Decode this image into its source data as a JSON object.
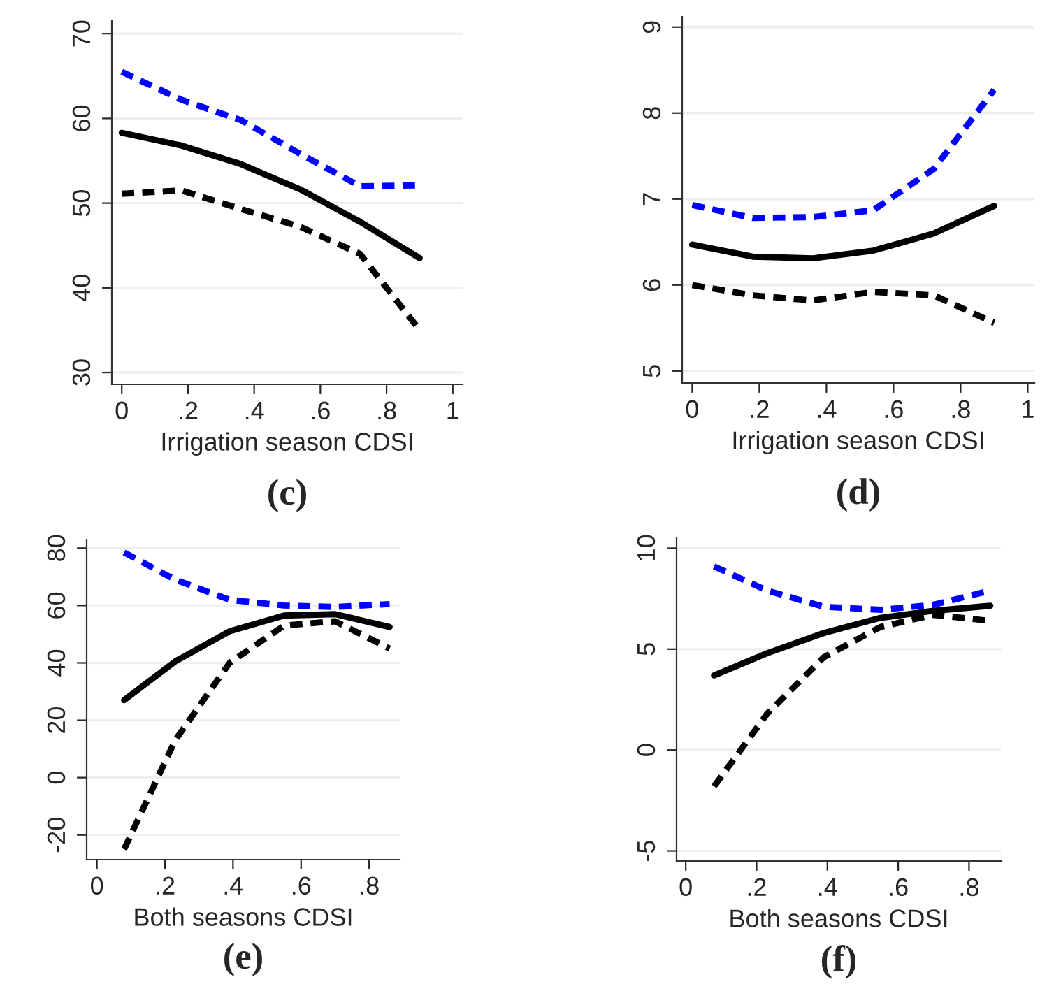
{
  "chart_data": [
    {
      "type": "line",
      "xlabel": "Irrigation season CDSI",
      "annotations": [
        "(c)"
      ],
      "x": [
        0,
        0.18,
        0.36,
        0.54,
        0.72,
        0.9
      ],
      "xlim": [
        -0.03,
        1.03
      ],
      "xticks": [
        0,
        {
          "value": 0.2,
          "label": ".2"
        },
        {
          "value": 0.4,
          "label": ".4"
        },
        {
          "value": 0.6,
          "label": ".6"
        },
        {
          "value": 0.8,
          "label": ".8"
        },
        1
      ],
      "ylim": [
        28.6,
        71.5
      ],
      "yticks": [
        30,
        40,
        50,
        60,
        70
      ],
      "grid": "y",
      "series": [
        {
          "color": "#0000ff",
          "line_style": "dashed",
          "values": [
            65.5,
            62.2,
            59.8,
            55.8,
            52.0,
            52.1
          ]
        },
        {
          "color": "#000000",
          "line_style": "solid",
          "values": [
            58.3,
            56.8,
            54.6,
            51.6,
            47.8,
            43.5
          ]
        },
        {
          "color": "#000000",
          "line_style": "dashed",
          "values": [
            51.1,
            51.5,
            49.3,
            47.2,
            44.0,
            35.0
          ]
        }
      ]
    },
    {
      "type": "line",
      "xlabel": "Irrigation season CDSI",
      "annotations": [
        "(d)"
      ],
      "x": [
        0,
        0.18,
        0.36,
        0.54,
        0.72,
        0.9
      ],
      "xlim": [
        -0.03,
        1.02
      ],
      "xticks": [
        0,
        {
          "value": 0.2,
          "label": ".2"
        },
        {
          "value": 0.4,
          "label": ".4"
        },
        {
          "value": 0.6,
          "label": ".6"
        },
        {
          "value": 0.8,
          "label": ".8"
        },
        1
      ],
      "ylim": [
        4.86,
        9.12
      ],
      "yticks": [
        5,
        6,
        7,
        8,
        9
      ],
      "grid": "y",
      "series": [
        {
          "color": "#0000ff",
          "line_style": "dashed",
          "values": [
            6.93,
            6.78,
            6.79,
            6.87,
            7.35,
            8.27
          ]
        },
        {
          "color": "#000000",
          "line_style": "solid",
          "values": [
            6.47,
            6.33,
            6.31,
            6.4,
            6.6,
            6.92
          ]
        },
        {
          "color": "#000000",
          "line_style": "dashed",
          "values": [
            6.0,
            5.88,
            5.82,
            5.92,
            5.88,
            5.56
          ]
        }
      ]
    },
    {
      "type": "line",
      "xlabel": "Both seasons CDSI",
      "annotations": [
        "(e)"
      ],
      "x": [
        0.08,
        0.23,
        0.39,
        0.55,
        0.7,
        0.86
      ],
      "xlim": [
        -0.03,
        0.89
      ],
      "xticks": [
        0,
        {
          "value": 0.2,
          "label": ".2"
        },
        {
          "value": 0.4,
          "label": ".4"
        },
        {
          "value": 0.6,
          "label": ".6"
        },
        {
          "value": 0.8,
          "label": ".8"
        }
      ],
      "ylim": [
        -28.6,
        83
      ],
      "yticks": [
        -20,
        0,
        20,
        40,
        60,
        80
      ],
      "grid": "y",
      "series": [
        {
          "color": "#0000ff",
          "line_style": "dashed",
          "values": [
            78.5,
            69,
            62,
            60,
            59.5,
            60.5
          ]
        },
        {
          "color": "#000000",
          "line_style": "solid",
          "values": [
            27,
            40.5,
            51,
            56.5,
            57,
            52.5
          ]
        },
        {
          "color": "#000000",
          "line_style": "dashed",
          "values": [
            -25,
            13,
            40,
            53,
            54.5,
            45
          ]
        }
      ]
    },
    {
      "type": "line",
      "xlabel": "Both seasons CDSI",
      "annotations": [
        "(f)"
      ],
      "x": [
        0.08,
        0.23,
        0.39,
        0.55,
        0.7,
        0.86
      ],
      "xlim": [
        -0.026,
        0.89
      ],
      "xticks": [
        0,
        {
          "value": 0.2,
          "label": ".2"
        },
        {
          "value": 0.4,
          "label": ".4"
        },
        {
          "value": 0.6,
          "label": ".6"
        },
        {
          "value": 0.8,
          "label": ".8"
        }
      ],
      "ylim": [
        -5.5,
        10.5
      ],
      "yticks": [
        -5,
        0,
        5,
        10
      ],
      "grid": "y",
      "series": [
        {
          "color": "#0000ff",
          "line_style": "dashed",
          "values": [
            9.1,
            7.9,
            7.1,
            6.95,
            7.2,
            7.9
          ]
        },
        {
          "color": "#000000",
          "line_style": "solid",
          "values": [
            3.7,
            4.8,
            5.8,
            6.55,
            6.9,
            7.15
          ]
        },
        {
          "color": "#000000",
          "line_style": "dashed",
          "values": [
            -1.8,
            1.8,
            4.6,
            6.1,
            6.7,
            6.4
          ]
        }
      ]
    }
  ]
}
